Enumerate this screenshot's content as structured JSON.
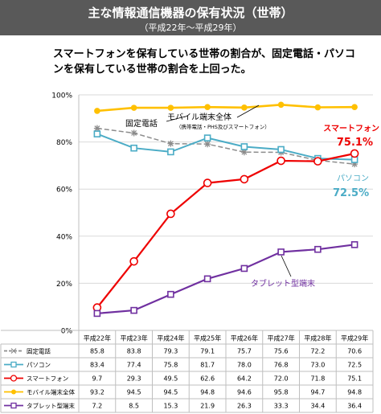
{
  "header": {
    "title": "主な情報通信機器の保有状況（世帯）",
    "subtitle": "（平成22年～平成29年）"
  },
  "headline": {
    "line1": "スマートフォンを保有している世帯の割合が、固定電話・パソコ",
    "line2": "ンを保有している世帯の割合を上回った。"
  },
  "colors": {
    "banner": "#595959",
    "landline": "#8c8c8c",
    "pc": "#4bacc6",
    "smartphone": "#ee0000",
    "mobile": "#ffc000",
    "tablet": "#7030a0"
  },
  "chart_data": {
    "type": "line",
    "categories": [
      "平成22年",
      "平成23年",
      "平成24年",
      "平成25年",
      "平成26年",
      "平成27年",
      "平成28年",
      "平成29年"
    ],
    "ylim": [
      0,
      100
    ],
    "yticks": [
      "0%",
      "20%",
      "40%",
      "60%",
      "80%",
      "100%"
    ],
    "grid": true,
    "series": [
      {
        "key": "landline",
        "name": "固定電話",
        "values": [
          85.8,
          83.8,
          79.3,
          79.1,
          75.7,
          75.6,
          72.2,
          70.6
        ]
      },
      {
        "key": "pc",
        "name": "パソコン",
        "values": [
          83.4,
          77.4,
          75.8,
          81.7,
          78.0,
          76.8,
          73.0,
          72.5
        ]
      },
      {
        "key": "smartphone",
        "name": "スマートフォン",
        "values": [
          9.7,
          29.3,
          49.5,
          62.6,
          64.2,
          72.0,
          71.8,
          75.1
        ]
      },
      {
        "key": "mobile",
        "name": "モバイル端末全体",
        "values": [
          93.2,
          94.5,
          94.5,
          94.8,
          94.6,
          95.8,
          94.7,
          94.8
        ]
      },
      {
        "key": "tablet",
        "name": "タブレット型端末",
        "values": [
          7.2,
          8.5,
          15.3,
          21.9,
          26.3,
          33.3,
          34.4,
          36.4
        ]
      }
    ],
    "annotations": {
      "landline": "固定電話",
      "mobile_line1": "モバイル端末全体",
      "mobile_line2": "（携帯電話・PHS及びスマートフォン）",
      "smartphone_name": "スマートフォン",
      "smartphone_value": "75.1%",
      "pc_name": "パソコン",
      "pc_value": "72.5%",
      "tablet": "タブレット型端末"
    }
  }
}
